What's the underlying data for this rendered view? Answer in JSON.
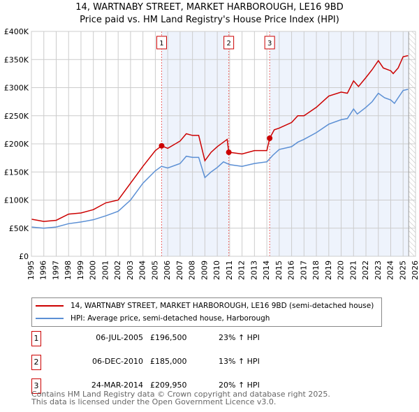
{
  "chart_data": {
    "type": "line",
    "title": "14, WARTNABY STREET, MARKET HARBOROUGH, LE16 9BD",
    "subtitle": "Price paid vs. HM Land Registry's House Price Index (HPI)",
    "xlim": [
      1995,
      2026
    ],
    "ylim": [
      0,
      400000
    ],
    "x_ticks": [
      "1995",
      "1996",
      "1997",
      "1998",
      "1999",
      "2000",
      "2001",
      "2002",
      "2003",
      "2004",
      "2005",
      "2006",
      "2007",
      "2008",
      "2009",
      "2010",
      "2011",
      "2012",
      "2013",
      "2014",
      "2015",
      "2016",
      "2017",
      "2018",
      "2019",
      "2020",
      "2021",
      "2022",
      "2023",
      "2024",
      "2025",
      "2026"
    ],
    "y_ticks": [
      {
        "v": 0,
        "label": "£0"
      },
      {
        "v": 50000,
        "label": "£50K"
      },
      {
        "v": 100000,
        "label": "£100K"
      },
      {
        "v": 150000,
        "label": "£150K"
      },
      {
        "v": 200000,
        "label": "£200K"
      },
      {
        "v": 250000,
        "label": "£250K"
      },
      {
        "v": 300000,
        "label": "£300K"
      },
      {
        "v": 350000,
        "label": "£350K"
      },
      {
        "v": 400000,
        "label": "£400K"
      }
    ],
    "grid": true,
    "shaded_ranges": [
      [
        2005.51,
        2010.93
      ],
      [
        2014.23,
        2025.45
      ]
    ],
    "hatched_from": 2025.45,
    "series": [
      {
        "name": "14, WARTNABY STREET, MARKET HARBOROUGH, LE16 9BD (semi-detached house)",
        "color": "#cc0000",
        "x": [
          1995,
          1996,
          1997,
          1998,
          1999,
          2000,
          2001,
          2002,
          2003,
          2004,
          2005,
          2005.51,
          2006,
          2007,
          2007.5,
          2008,
          2008.5,
          2009,
          2009.5,
          2010,
          2010.8,
          2010.93,
          2011,
          2012,
          2013,
          2014,
          2014.23,
          2014.6,
          2015,
          2016,
          2016.5,
          2017,
          2018,
          2019,
          2020,
          2020.5,
          2021,
          2021.4,
          2022,
          2022.5,
          2023,
          2023.4,
          2024,
          2024.2,
          2024.6,
          2025,
          2025.4
        ],
        "y": [
          66000,
          62000,
          64000,
          75000,
          77000,
          83000,
          95000,
          100000,
          130000,
          160000,
          188000,
          196500,
          192000,
          205000,
          218000,
          215000,
          215000,
          170000,
          185000,
          195000,
          208000,
          185000,
          185000,
          182000,
          188000,
          188000,
          209950,
          225000,
          228000,
          238000,
          250000,
          250000,
          265000,
          285000,
          292000,
          290000,
          312000,
          302000,
          318000,
          332000,
          348000,
          335000,
          330000,
          325000,
          335000,
          355000,
          357000
        ]
      },
      {
        "name": "HPI: Average price, semi-detached house, Harborough",
        "color": "#5b8fd4",
        "x": [
          1995,
          1996,
          1997,
          1998,
          1999,
          2000,
          2001,
          2002,
          2003,
          2004,
          2005,
          2005.5,
          2006,
          2007,
          2007.5,
          2008,
          2008.5,
          2009,
          2009.5,
          2010,
          2010.5,
          2011,
          2012,
          2013,
          2014,
          2014.5,
          2015,
          2016,
          2016.5,
          2017,
          2018,
          2019,
          2020,
          2020.5,
          2021,
          2021.3,
          2022,
          2022.5,
          2023,
          2023.5,
          2024,
          2024.3,
          2024.6,
          2025,
          2025.4
        ],
        "y": [
          52000,
          50000,
          52000,
          58000,
          61000,
          65000,
          72000,
          80000,
          100000,
          130000,
          152000,
          160000,
          157000,
          165000,
          178000,
          176000,
          176000,
          140000,
          150000,
          158000,
          168000,
          163000,
          160000,
          165000,
          168000,
          180000,
          190000,
          195000,
          203000,
          208000,
          220000,
          235000,
          243000,
          245000,
          262000,
          253000,
          265000,
          275000,
          290000,
          282000,
          278000,
          272000,
          282000,
          295000,
          297000
        ]
      }
    ],
    "sales": [
      {
        "n": "1",
        "x": 2005.51,
        "y": 196500
      },
      {
        "n": "2",
        "x": 2010.93,
        "y": 185000
      },
      {
        "n": "3",
        "x": 2014.23,
        "y": 209950
      }
    ]
  },
  "legend": {
    "red": "14, WARTNABY STREET, MARKET HARBOROUGH, LE16 9BD (semi-detached house)",
    "blue": "HPI: Average price, semi-detached house, Harborough"
  },
  "table": [
    {
      "n": "1",
      "date": "06-JUL-2005",
      "price": "£196,500",
      "hpi": "23% ↑ HPI"
    },
    {
      "n": "2",
      "date": "06-DEC-2010",
      "price": "£185,000",
      "hpi": "13% ↑ HPI"
    },
    {
      "n": "3",
      "date": "24-MAR-2014",
      "price": "£209,950",
      "hpi": "20% ↑ HPI"
    }
  ],
  "footer": {
    "line1": "Contains HM Land Registry data © Crown copyright and database right 2025.",
    "line2": "This data is licensed under the Open Government Licence v3.0."
  }
}
